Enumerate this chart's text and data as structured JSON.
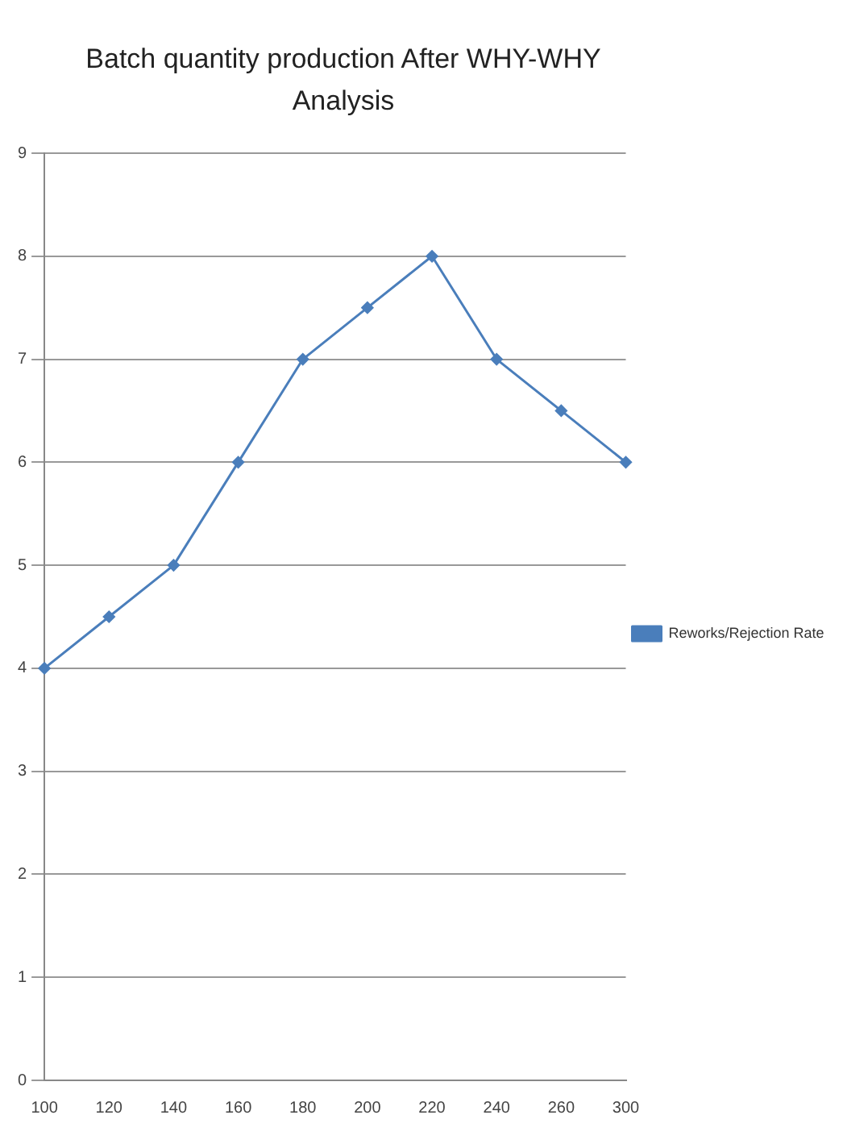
{
  "chart_data": {
    "type": "line",
    "title": "Batch quantity production After WHY-WHY Analysis",
    "categories": [
      "100",
      "120",
      "140",
      "160",
      "180",
      "200",
      "220",
      "240",
      "260",
      "300"
    ],
    "series": [
      {
        "name": "Reworks/Rejection Rate",
        "color": "#4a7ebb",
        "values": [
          4,
          4.5,
          5,
          6,
          7,
          7.5,
          8,
          7,
          6.5,
          6
        ]
      }
    ],
    "ylim": [
      0,
      9
    ],
    "yticks": [
      0,
      1,
      2,
      3,
      4,
      5,
      6,
      7,
      8,
      9
    ],
    "grid": "y",
    "legend": "right",
    "marker": "diamond",
    "line_style": "solid"
  }
}
